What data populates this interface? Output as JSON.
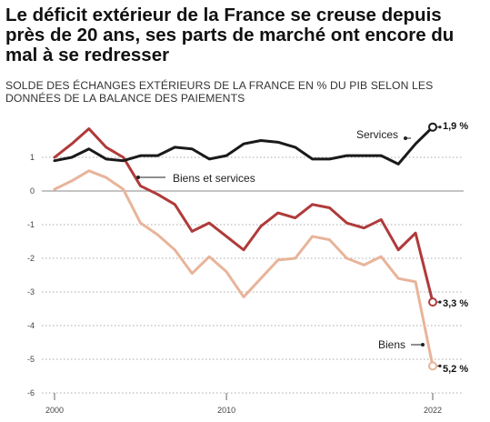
{
  "header": {
    "title": "Le déficit extérieur de la France se creuse depuis près de 20 ans, ses parts de marché ont encore du mal à se redresser",
    "subtitle": "SOLDE DES ÉCHANGES EXTÉRIEURS DE LA FRANCE EN % DU PIB SELON LES DONNÉES DE LA BALANCE DES PAIEMENTS"
  },
  "chart_data": {
    "type": "line",
    "title": "Le déficit extérieur de la France se creuse depuis près de 20 ans, ses parts de marché ont encore du mal à se redresser",
    "subtitle": "SOLDE DES ÉCHANGES EXTÉRIEURS DE LA FRANCE EN % DU PIB SELON LES DONNÉES DE LA BALANCE DES PAIEMENTS",
    "xlabel": "",
    "ylabel": "",
    "x": [
      2000,
      2001,
      2002,
      2003,
      2004,
      2005,
      2006,
      2007,
      2008,
      2009,
      2010,
      2011,
      2012,
      2013,
      2014,
      2015,
      2016,
      2017,
      2018,
      2019,
      2020,
      2021,
      2022
    ],
    "xlim": [
      1999.5,
      2023
    ],
    "ylim": [
      -6,
      2
    ],
    "x_ticks": [
      "2000",
      "2010",
      "2022"
    ],
    "y_ticks": [
      "1",
      "0",
      "-1",
      "-2",
      "-3",
      "-4",
      "-5",
      "-6"
    ],
    "grid": "horizontal dotted",
    "series": [
      {
        "name": "Services",
        "color": "#1a1a1a",
        "values": [
          0.9,
          1.0,
          1.25,
          0.95,
          0.9,
          1.05,
          1.05,
          1.3,
          1.25,
          0.95,
          1.05,
          1.4,
          1.5,
          1.45,
          1.3,
          0.95,
          0.95,
          1.05,
          1.05,
          1.05,
          0.8,
          1.4,
          1.9
        ],
        "end_label": "1,9 %"
      },
      {
        "name": "Biens et services",
        "color": "#b03a3a",
        "values": [
          1.0,
          1.4,
          1.85,
          1.3,
          1.0,
          0.15,
          -0.1,
          -0.4,
          -1.2,
          -0.95,
          -1.35,
          -1.75,
          -1.05,
          -0.65,
          -0.8,
          -0.4,
          -0.5,
          -0.95,
          -1.1,
          -0.85,
          -1.75,
          -1.25,
          -3.3
        ],
        "end_label": "3,3 %"
      },
      {
        "name": "Biens",
        "color": "#e8b49a",
        "values": [
          0.05,
          0.3,
          0.6,
          0.4,
          0.05,
          -0.95,
          -1.3,
          -1.75,
          -2.45,
          -1.95,
          -2.4,
          -3.15,
          -2.6,
          -2.05,
          -2.0,
          -1.35,
          -1.45,
          -2.0,
          -2.2,
          -1.95,
          -2.6,
          -2.7,
          -5.2
        ],
        "end_label": "5,2 %"
      }
    ]
  }
}
